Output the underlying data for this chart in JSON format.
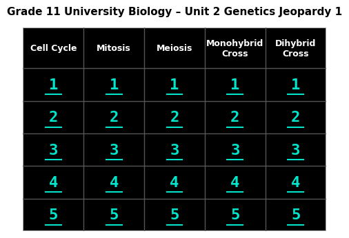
{
  "title": "Grade 11 University Biology – Unit 2 Genetics Jeopardy 1",
  "title_fontsize": 11,
  "title_color": "#000000",
  "background_color": "#000000",
  "header_text_color": "#ffffff",
  "cell_text_color": "#00e5cc",
  "grid_color": "#555555",
  "outer_border_color": "#aaaaaa",
  "columns": [
    "Cell Cycle",
    "Mitosis",
    "Meiosis",
    "Monohybrid\nCross",
    "Dihybrid\nCross"
  ],
  "rows": [
    "1",
    "2",
    "3",
    "4",
    "5"
  ],
  "header_fontsize": 9,
  "cell_fontsize": 16,
  "figure_bg": "#ffffff"
}
